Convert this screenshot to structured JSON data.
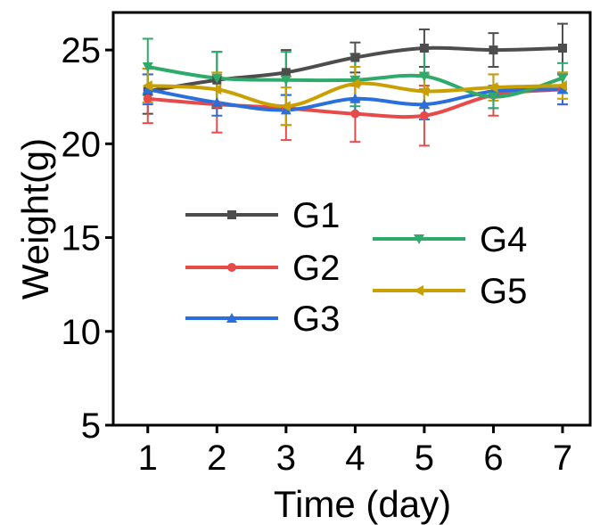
{
  "chart_data": {
    "type": "line",
    "xlabel": "Time (day)",
    "ylabel": "Weight(g)",
    "xlim": [
      0.5,
      7.4
    ],
    "ylim": [
      5,
      27
    ],
    "xticks": [
      1,
      2,
      3,
      4,
      5,
      6,
      7
    ],
    "yticks": [
      5,
      10,
      15,
      20,
      25
    ],
    "legend_placement": "center",
    "series": [
      {
        "name": "G1",
        "color": "#4d4d4d",
        "marker": "square",
        "x": [
          1,
          2,
          3,
          4,
          5,
          6,
          7
        ],
        "values": [
          22.8,
          23.4,
          23.8,
          24.6,
          25.1,
          25.0,
          25.1
        ],
        "errors": [
          1.2,
          1.5,
          1.2,
          0.8,
          1.0,
          0.9,
          1.3
        ]
      },
      {
        "name": "G2",
        "color": "#e84a4a",
        "marker": "circle",
        "x": [
          1,
          2,
          3,
          4,
          5,
          6,
          7
        ],
        "values": [
          22.4,
          22.1,
          21.9,
          21.6,
          21.5,
          22.6,
          22.9
        ],
        "errors": [
          1.3,
          1.5,
          1.7,
          1.5,
          1.6,
          1.1,
          0.8
        ]
      },
      {
        "name": "G3",
        "color": "#2a6fdb",
        "marker": "triangle-up",
        "x": [
          1,
          2,
          3,
          4,
          5,
          6,
          7
        ],
        "values": [
          22.9,
          22.2,
          21.8,
          22.4,
          22.1,
          22.8,
          22.9
        ],
        "errors": [
          0.8,
          0.7,
          0.8,
          0.8,
          0.8,
          0.9,
          0.8
        ]
      },
      {
        "name": "G4",
        "color": "#2eaa6b",
        "marker": "triangle-down",
        "x": [
          1,
          2,
          3,
          4,
          5,
          6,
          7
        ],
        "values": [
          24.1,
          23.5,
          23.4,
          23.4,
          23.6,
          22.5,
          23.5
        ],
        "errors": [
          1.5,
          1.4,
          1.5,
          1.4,
          1.5,
          0.6,
          0.8
        ]
      },
      {
        "name": "G5",
        "color": "#c9a000",
        "marker": "triangle-left",
        "x": [
          1,
          2,
          3,
          4,
          5,
          6,
          7
        ],
        "values": [
          23.1,
          22.9,
          22.0,
          23.2,
          22.8,
          23.0,
          23.1
        ],
        "errors": [
          0.9,
          0.9,
          1.0,
          0.9,
          0.9,
          0.7,
          0.7
        ]
      }
    ]
  }
}
